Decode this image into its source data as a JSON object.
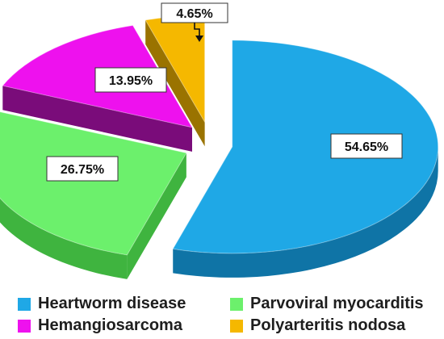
{
  "chart_data": {
    "type": "pie",
    "style": "3d-exploded",
    "title": "",
    "categories": [
      "Heartworm disease",
      "Parvoviral myocarditis",
      "Hemangiosarcoma",
      "Polyarteritis nodosa"
    ],
    "values": [
      54.65,
      26.75,
      13.95,
      4.65
    ],
    "value_labels": [
      "54.65%",
      "26.75%",
      "13.95%",
      "4.65%"
    ],
    "colors": [
      "#1fa8e6",
      "#6cf06c",
      "#ee11ee",
      "#f5b800"
    ],
    "side_colors": [
      "#0f74a6",
      "#3fb43f",
      "#7a0c7a",
      "#9a7300"
    ],
    "legend_position": "bottom"
  },
  "legend": {
    "items": [
      {
        "label": "Heartworm disease",
        "color": "#1fa8e6"
      },
      {
        "label": "Parvoviral myocarditis",
        "color": "#6cf06c"
      },
      {
        "label": "Hemangiosarcoma",
        "color": "#ee11ee"
      },
      {
        "label": "Polyarteritis nodosa",
        "color": "#f5b800"
      }
    ]
  }
}
